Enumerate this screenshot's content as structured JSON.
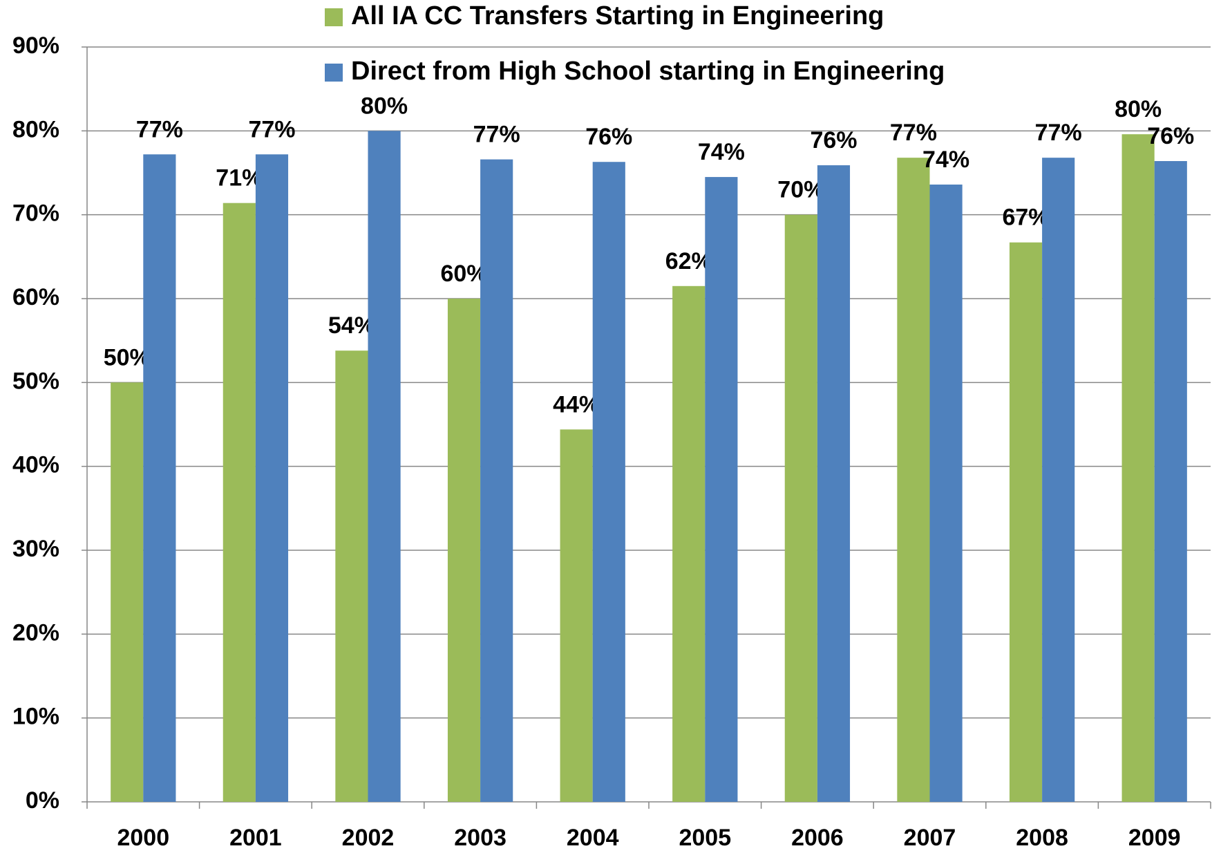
{
  "chart_data": {
    "type": "bar",
    "categories": [
      "2000",
      "2001",
      "2002",
      "2003",
      "2004",
      "2005",
      "2006",
      "2007",
      "2008",
      "2009"
    ],
    "series": [
      {
        "name": "All IA CC Transfers Starting in Engineering",
        "color": "#9bbb59",
        "values": [
          50,
          71.4,
          53.8,
          60,
          44.4,
          61.5,
          70,
          76.8,
          66.7,
          79.6
        ],
        "value_labels": [
          "50%",
          "71%",
          "54%",
          "60%",
          "44%",
          "62%",
          "70%",
          "77%",
          "67%",
          "80%"
        ]
      },
      {
        "name": "Direct from High School starting in Engineering",
        "color": "#4f81bd",
        "values": [
          77.2,
          77.2,
          80,
          76.6,
          76.3,
          74.5,
          75.9,
          73.6,
          76.8,
          76.4
        ],
        "value_labels": [
          "77%",
          "77%",
          "80%",
          "77%",
          "76%",
          "74%",
          "76%",
          "74%",
          "77%",
          "76%"
        ]
      }
    ],
    "ylim": [
      0,
      90
    ],
    "yticks": [
      {
        "value": 0,
        "label": "0%"
      },
      {
        "value": 10,
        "label": "10%"
      },
      {
        "value": 20,
        "label": "20%"
      },
      {
        "value": 30,
        "label": "30%"
      },
      {
        "value": 40,
        "label": "40%"
      },
      {
        "value": 50,
        "label": "50%"
      },
      {
        "value": 60,
        "label": "60%"
      },
      {
        "value": 70,
        "label": "70%"
      },
      {
        "value": 80,
        "label": "80%"
      },
      {
        "value": 90,
        "label": "90%"
      }
    ],
    "grid": true,
    "legend": "top"
  }
}
